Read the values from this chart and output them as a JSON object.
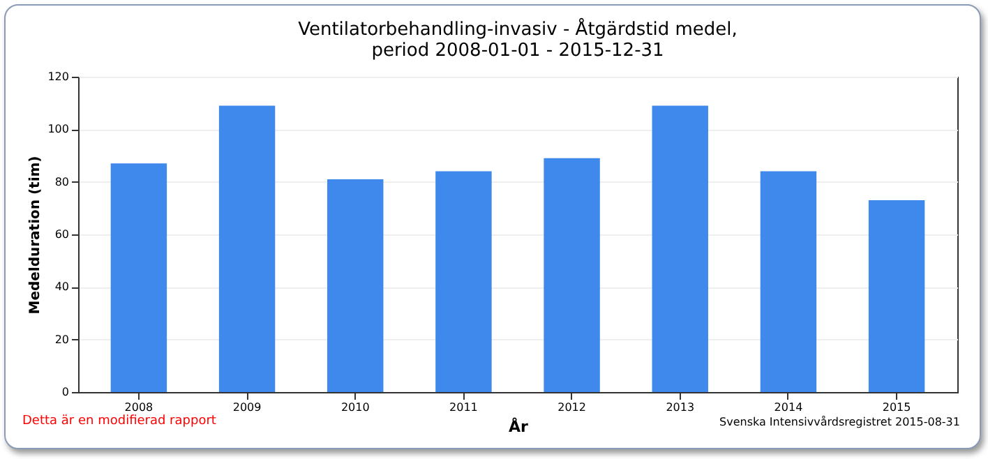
{
  "chart_data": {
    "type": "bar",
    "title": "Ventilatorbehandling-invasiv - Åtgärdstid medel,\nperiod 2008-01-01 - 2015-12-31",
    "xlabel": "År",
    "ylabel": "Medelduration (tim)",
    "categories": [
      "2008",
      "2009",
      "2010",
      "2011",
      "2012",
      "2013",
      "2014",
      "2015"
    ],
    "values": [
      87,
      109,
      81,
      84,
      89,
      109,
      84,
      73
    ],
    "color": "#3f89ed",
    "ylim": [
      0,
      120
    ],
    "yticks": [
      0,
      20,
      40,
      60,
      80,
      100,
      120
    ],
    "grid": "y",
    "annotations": [
      "Detta är en modifierad rapport",
      "Svenska Intensivvårdsregistret 2015-08-31"
    ]
  }
}
